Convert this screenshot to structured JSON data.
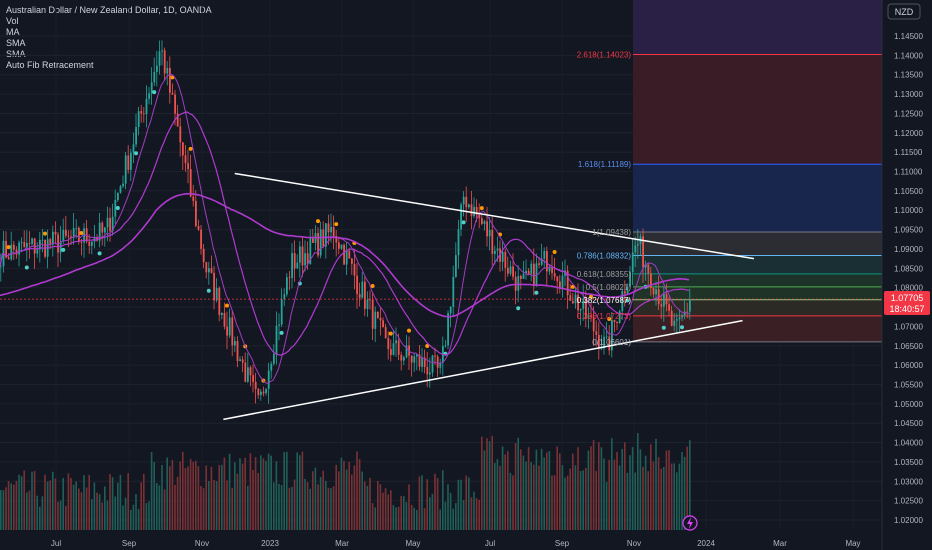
{
  "header": {
    "symbol_line": "Australian Dollar / New Zealand Dollar, 1D, OANDA",
    "indicators": [
      "Vol",
      "MA",
      "SMA",
      "SMA",
      "Auto Fib Retracement"
    ]
  },
  "axis": {
    "currency": "NZD",
    "last_price": "1.07705",
    "countdown": "18:40:57"
  },
  "colors": {
    "background": "#131722",
    "up": "#26a69a",
    "down": "#ef5350",
    "ma_purple": "#b03ad0",
    "trendline": "#ffffff",
    "last_price": "#f23645"
  },
  "chart_data": {
    "type": "candlestick",
    "price_scale": {
      "min": 1.02,
      "max": 1.145,
      "step": 0.005
    },
    "x_ticks": [
      "Jul",
      "Sep",
      "Nov",
      "2023",
      "Mar",
      "May",
      "Jul",
      "Sep",
      "Nov",
      "2024",
      "Mar",
      "May"
    ],
    "fib_levels": [
      {
        "ratio": "0",
        "value": 1.06601,
        "label": "0(1.06601)"
      },
      {
        "ratio": "0.236",
        "value": 1.07273,
        "label": "0.236(1.07273)"
      },
      {
        "ratio": "0.382",
        "value": 1.07687,
        "label": "0.382(1.07687)"
      },
      {
        "ratio": "0.5",
        "value": 1.08021,
        "label": "0.5(1.08021)"
      },
      {
        "ratio": "0.618",
        "value": 1.08355,
        "label": "0.618(1.08355)"
      },
      {
        "ratio": "0.786",
        "value": 1.08832,
        "label": "0.786(1.08832)"
      },
      {
        "ratio": "1",
        "value": 1.09438,
        "label": "1(1.09438)"
      },
      {
        "ratio": "1.618",
        "value": 1.11189,
        "label": "1.618(1.11189)"
      },
      {
        "ratio": "2.618",
        "value": 1.14023,
        "label": "2.618(1.14023)"
      }
    ],
    "trendlines": [
      {
        "name": "upper",
        "from": {
          "date": "2022-11-20",
          "price": 1.1095
        },
        "to": {
          "date": "2024-02-20",
          "price": 1.0875
        }
      },
      {
        "name": "lower",
        "from": {
          "date": "2022-11-10",
          "price": 1.046
        },
        "to": {
          "date": "2024-02-10",
          "price": 1.0715
        }
      }
    ],
    "anchor_points": [
      {
        "label": "Jun 2022",
        "price": 1.089
      },
      {
        "label": "Aug 2022",
        "price": 1.094
      },
      {
        "label": "Oct 2022",
        "price": 1.142
      },
      {
        "label": "Nov 2022",
        "price": 1.085
      },
      {
        "label": "Dec 2022",
        "price": 1.049
      },
      {
        "label": "Jan 2023",
        "price": 1.086
      },
      {
        "label": "Mar 2023",
        "price": 1.095
      },
      {
        "label": "Apr 2023",
        "price": 1.065
      },
      {
        "label": "May 2023",
        "price": 1.058
      },
      {
        "label": "Jun 2023",
        "price": 1.104
      },
      {
        "label": "Jul 2023",
        "price": 1.08
      },
      {
        "label": "Aug 2023",
        "price": 1.088
      },
      {
        "label": "Sep 2023",
        "price": 1.064
      },
      {
        "label": "Oct 2023",
        "price": 1.092
      },
      {
        "label": "Nov 2023",
        "price": 1.068
      },
      {
        "label": "Dec 2023",
        "price": 1.07705
      }
    ]
  }
}
